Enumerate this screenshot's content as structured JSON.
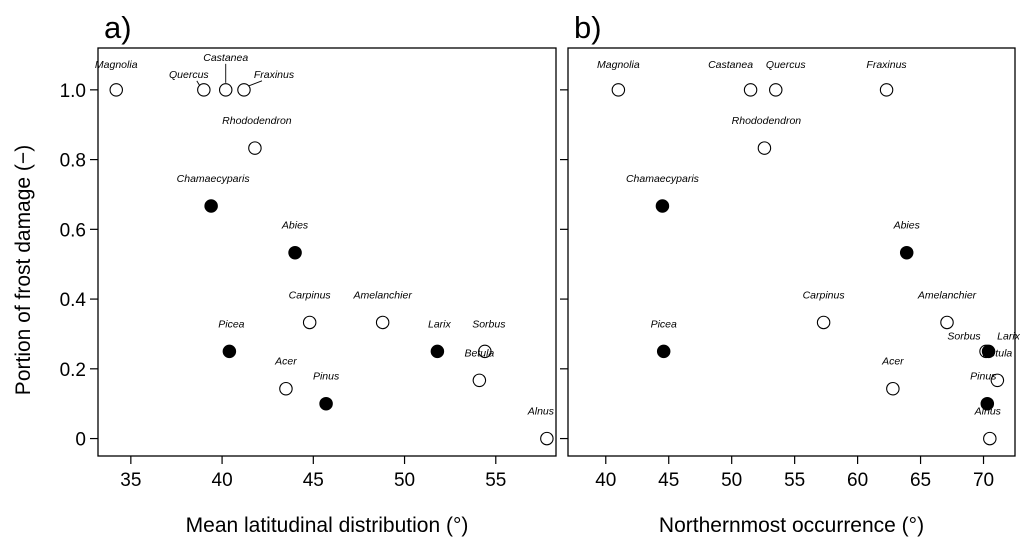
{
  "chart_data": [
    {
      "type": "scatter",
      "panel_label": "a)",
      "xlabel": "Mean latitudinal distribution (°)",
      "ylabel": "Portion of frost damage (−)",
      "xlim": [
        33.2,
        58.3
      ],
      "ylim": [
        -0.05,
        1.12
      ],
      "xticks": [
        "35",
        "40",
        "45",
        "50",
        "55"
      ],
      "xtick_values": [
        35,
        40,
        45,
        50,
        55
      ],
      "yticks": [
        "0",
        "0.2",
        "0.4",
        "0.6",
        "0.8",
        "1.0"
      ],
      "ytick_values": [
        0,
        0.2,
        0.4,
        0.6,
        0.8,
        1.0
      ],
      "grid": false,
      "legend": "none",
      "marker_colors": {
        "filled": "#000000",
        "open": "#ffffff"
      },
      "points": [
        {
          "label": "Magnolia",
          "x": 34.2,
          "y": 1.0,
          "filled": false
        },
        {
          "label": "Quercus",
          "x": 39.0,
          "y": 1.0,
          "filled": false
        },
        {
          "label": "Castanea",
          "x": 40.2,
          "y": 1.0,
          "filled": false
        },
        {
          "label": "Fraxinus",
          "x": 41.2,
          "y": 1.0,
          "filled": false
        },
        {
          "label": "Rhododendron",
          "x": 41.8,
          "y": 0.833,
          "filled": false
        },
        {
          "label": "Chamaecyparis",
          "x": 39.4,
          "y": 0.667,
          "filled": true
        },
        {
          "label": "Abies",
          "x": 44.0,
          "y": 0.533,
          "filled": true
        },
        {
          "label": "Carpinus",
          "x": 44.8,
          "y": 0.333,
          "filled": false
        },
        {
          "label": "Amelanchier",
          "x": 48.8,
          "y": 0.333,
          "filled": false
        },
        {
          "label": "Picea",
          "x": 40.4,
          "y": 0.25,
          "filled": true
        },
        {
          "label": "Larix",
          "x": 51.8,
          "y": 0.25,
          "filled": true
        },
        {
          "label": "Sorbus",
          "x": 54.4,
          "y": 0.25,
          "filled": false
        },
        {
          "label": "Betula",
          "x": 54.1,
          "y": 0.167,
          "filled": false
        },
        {
          "label": "Acer",
          "x": 43.5,
          "y": 0.143,
          "filled": false
        },
        {
          "label": "Pinus",
          "x": 45.7,
          "y": 0.1,
          "filled": true
        },
        {
          "label": "Alnus",
          "x": 57.8,
          "y": 0.0,
          "filled": false
        }
      ]
    },
    {
      "type": "scatter",
      "panel_label": "b)",
      "xlabel": "Northernmost occurrence (°)",
      "ylabel": "",
      "xlim": [
        37.0,
        72.5
      ],
      "ylim": [
        -0.05,
        1.12
      ],
      "xticks": [
        "40",
        "45",
        "50",
        "55",
        "60",
        "65",
        "70"
      ],
      "xtick_values": [
        40,
        45,
        50,
        55,
        60,
        65,
        70
      ],
      "yticks": [],
      "ytick_values": [
        0,
        0.2,
        0.4,
        0.6,
        0.8,
        1.0
      ],
      "grid": false,
      "legend": "none",
      "marker_colors": {
        "filled": "#000000",
        "open": "#ffffff"
      },
      "points": [
        {
          "label": "Magnolia",
          "x": 41.0,
          "y": 1.0,
          "filled": false
        },
        {
          "label": "Castanea",
          "x": 51.5,
          "y": 1.0,
          "filled": false
        },
        {
          "label": "Quercus",
          "x": 53.5,
          "y": 1.0,
          "filled": false
        },
        {
          "label": "Fraxinus",
          "x": 62.3,
          "y": 1.0,
          "filled": false
        },
        {
          "label": "Rhododendron",
          "x": 52.6,
          "y": 0.833,
          "filled": false
        },
        {
          "label": "Chamaecyparis",
          "x": 44.5,
          "y": 0.667,
          "filled": true
        },
        {
          "label": "Abies",
          "x": 63.9,
          "y": 0.533,
          "filled": true
        },
        {
          "label": "Carpinus",
          "x": 57.3,
          "y": 0.333,
          "filled": false
        },
        {
          "label": "Amelanchier",
          "x": 67.1,
          "y": 0.333,
          "filled": false
        },
        {
          "label": "Picea",
          "x": 44.6,
          "y": 0.25,
          "filled": true
        },
        {
          "label": "Sorbus",
          "x": 70.2,
          "y": 0.25,
          "filled": false
        },
        {
          "label": "Larix",
          "x": 70.4,
          "y": 0.25,
          "filled": true
        },
        {
          "label": "Betula",
          "x": 71.1,
          "y": 0.167,
          "filled": false
        },
        {
          "label": "Acer",
          "x": 62.8,
          "y": 0.143,
          "filled": false
        },
        {
          "label": "Pinus",
          "x": 70.3,
          "y": 0.1,
          "filled": true
        },
        {
          "label": "Alnus",
          "x": 70.5,
          "y": 0.0,
          "filled": false
        }
      ]
    }
  ]
}
